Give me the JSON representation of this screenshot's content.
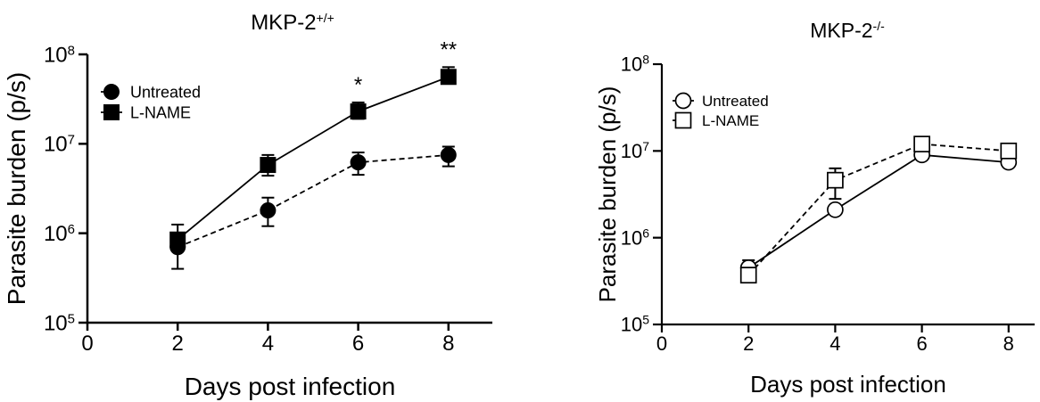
{
  "chart_data": [
    {
      "type": "line",
      "title": "MKP-2",
      "title_superscript": "+/+",
      "xlabel": "Days post infection",
      "ylabel": "Parasite burden (p/s)",
      "xlim": [
        0,
        9
      ],
      "ylim": [
        100000,
        100000000
      ],
      "yscale": "log",
      "xticks": [
        "0",
        "2",
        "4",
        "6",
        "8"
      ],
      "xtick_values": [
        0,
        2,
        4,
        6,
        8
      ],
      "ytick_values": [
        100000,
        1000000,
        10000000,
        100000000
      ],
      "ytick_base": "10",
      "ytick_exponents": [
        "5",
        "6",
        "7",
        "8"
      ],
      "grid": false,
      "legend_position": "top-left",
      "series": [
        {
          "name": "Untreated",
          "marker": "circle",
          "filled": true,
          "line_style": "dashed",
          "x": [
            2,
            4,
            6,
            8
          ],
          "y": [
            700000,
            1800000,
            6200000,
            7500000
          ],
          "err_low": [
            400000,
            1200000,
            4500000,
            5600000
          ],
          "err_high": [
            1000000,
            2500000,
            8000000,
            9300000
          ]
        },
        {
          "name": "L-NAME",
          "marker": "square",
          "filled": true,
          "line_style": "solid",
          "x": [
            2,
            4,
            6,
            8
          ],
          "y": [
            850000,
            5800000,
            23000000,
            56000000
          ],
          "err_low": [
            650000,
            4400000,
            19000000,
            47000000
          ],
          "err_high": [
            1250000,
            7500000,
            29000000,
            72000000
          ]
        }
      ],
      "annotations": [
        {
          "text": "*",
          "x": 6
        },
        {
          "text": "**",
          "x": 8
        }
      ]
    },
    {
      "type": "line",
      "title": "MKP-2",
      "title_superscript": "-/-",
      "xlabel": "Days post infection",
      "ylabel": "Parasite burden (p/s)",
      "xlim": [
        0,
        9
      ],
      "ylim": [
        100000,
        100000000
      ],
      "yscale": "log",
      "xticks": [
        "0",
        "2",
        "4",
        "6",
        "8"
      ],
      "xtick_values": [
        0,
        2,
        4,
        6,
        8
      ],
      "ytick_values": [
        100000,
        1000000,
        10000000,
        100000000
      ],
      "ytick_base": "10",
      "ytick_exponents": [
        "5",
        "6",
        "7",
        "8"
      ],
      "grid": false,
      "legend_position": "top-left",
      "series": [
        {
          "name": "Untreated",
          "marker": "circle",
          "filled": false,
          "line_style": "solid",
          "x": [
            2,
            4,
            6,
            8
          ],
          "y": [
            450000,
            2100000,
            9000000,
            7400000
          ],
          "err_low": [
            380000,
            1900000,
            8000000,
            6600000
          ],
          "err_high": [
            550000,
            2300000,
            10000000,
            8200000
          ]
        },
        {
          "name": "L-NAME",
          "marker": "square",
          "filled": false,
          "line_style": "dashed",
          "x": [
            2,
            4,
            6,
            8
          ],
          "y": [
            370000,
            4600000,
            12000000,
            10000000
          ],
          "err_low": [
            320000,
            2800000,
            10000000,
            8600000
          ],
          "err_high": [
            450000,
            6300000,
            14000000,
            11500000
          ]
        }
      ],
      "annotations": []
    }
  ]
}
